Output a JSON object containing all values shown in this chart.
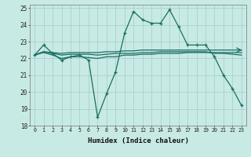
{
  "xlabel": "Humidex (Indice chaleur)",
  "xlim": [
    -0.5,
    23.5
  ],
  "ylim": [
    18,
    25.2
  ],
  "yticks": [
    18,
    19,
    20,
    21,
    22,
    23,
    24,
    25
  ],
  "xticks": [
    0,
    1,
    2,
    3,
    4,
    5,
    6,
    7,
    8,
    9,
    10,
    11,
    12,
    13,
    14,
    15,
    16,
    17,
    18,
    19,
    20,
    21,
    22,
    23
  ],
  "background_color": "#c8eae4",
  "grid_color": "#a0cccc",
  "line_color": "#1a6e62",
  "line1_y": [
    22.2,
    22.8,
    22.3,
    21.9,
    22.1,
    22.2,
    21.9,
    18.5,
    19.9,
    21.2,
    23.5,
    24.8,
    24.3,
    24.1,
    24.1,
    24.9,
    23.9,
    22.8,
    22.8,
    22.8,
    22.1,
    21.0,
    20.2,
    19.2
  ],
  "line2_y": [
    22.2,
    22.4,
    22.35,
    22.3,
    22.35,
    22.35,
    22.35,
    22.35,
    22.4,
    22.4,
    22.45,
    22.45,
    22.5,
    22.5,
    22.5,
    22.5,
    22.5,
    22.5,
    22.5,
    22.5,
    22.5,
    22.5,
    22.5,
    22.5
  ],
  "line3_y": [
    22.2,
    22.4,
    22.3,
    22.2,
    22.25,
    22.25,
    22.25,
    22.2,
    22.25,
    22.3,
    22.3,
    22.3,
    22.35,
    22.35,
    22.4,
    22.4,
    22.4,
    22.4,
    22.4,
    22.4,
    22.3,
    22.3,
    22.25,
    22.2
  ],
  "line4_y": [
    22.2,
    22.35,
    22.2,
    22.0,
    22.1,
    22.1,
    22.05,
    22.0,
    22.1,
    22.1,
    22.2,
    22.2,
    22.25,
    22.25,
    22.3,
    22.3,
    22.3,
    22.35,
    22.35,
    22.35,
    22.35,
    22.35,
    22.35,
    22.35
  ]
}
